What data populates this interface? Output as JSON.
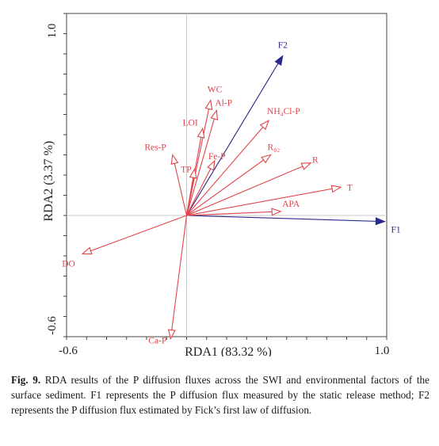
{
  "chart_data": {
    "type": "scatter",
    "subtype": "rda-biplot",
    "xlabel": "RDA1 (83.32 %)",
    "ylabel": "RDA2 (3.37 %)",
    "xlim": [
      -0.6,
      1.0
    ],
    "ylim": [
      -0.6,
      1.0
    ],
    "x_ticks": [
      "-0.6",
      "1.0"
    ],
    "y_ticks": [
      "-0.6",
      "1.0"
    ],
    "grid": false,
    "reference_lines": {
      "x": 0,
      "y": 0
    },
    "colors": {
      "environmental": "#e0454a",
      "flux": "#2a2a8a"
    },
    "vectors": [
      {
        "label": "F1",
        "x": 0.99,
        "y": -0.03,
        "group": "flux"
      },
      {
        "label": "F2",
        "x": 0.48,
        "y": 0.79,
        "group": "flux"
      },
      {
        "label": "WC",
        "x": 0.12,
        "y": 0.57,
        "group": "environmental"
      },
      {
        "label": "Al-P",
        "x": 0.15,
        "y": 0.52,
        "group": "environmental"
      },
      {
        "label": "NH₄Cl-P",
        "x": 0.41,
        "y": 0.47,
        "group": "environmental"
      },
      {
        "label": "LOI",
        "x": 0.08,
        "y": 0.43,
        "group": "environmental"
      },
      {
        "label": "Res-P",
        "x": -0.07,
        "y": 0.3,
        "group": "environmental"
      },
      {
        "label": "TP",
        "x": 0.04,
        "y": 0.23,
        "group": "environmental"
      },
      {
        "label": "Fe-P",
        "x": 0.14,
        "y": 0.27,
        "group": "environmental"
      },
      {
        "label": "R₀₂",
        "x": 0.42,
        "y": 0.3,
        "group": "environmental"
      },
      {
        "label": "R",
        "x": 0.62,
        "y": 0.26,
        "group": "environmental"
      },
      {
        "label": "T",
        "x": 0.77,
        "y": 0.14,
        "group": "environmental"
      },
      {
        "label": "APA",
        "x": 0.47,
        "y": 0.02,
        "group": "environmental"
      },
      {
        "label": "DO",
        "x": -0.52,
        "y": -0.19,
        "group": "environmental"
      },
      {
        "label": "Ca-P",
        "x": -0.08,
        "y": -0.61,
        "group": "environmental"
      }
    ]
  },
  "caption": {
    "fig_label": "Fig. 9.",
    "text": "RDA results of the P diffusion fluxes across the SWI and environmental factors of the surface sediment. F1 represents the P diffusion flux measured by the static release method; F2 represents the P diffusion flux estimated by Fick’s first law of diffusion."
  }
}
